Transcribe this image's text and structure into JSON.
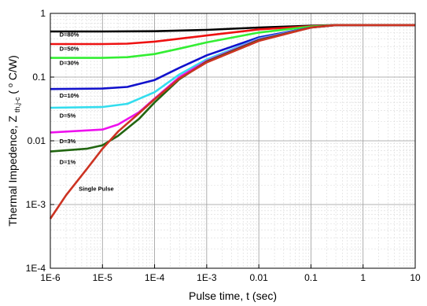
{
  "chart_data": {
    "type": "line",
    "xscale": "log",
    "yscale": "log",
    "xlim": [
      1e-06,
      10
    ],
    "ylim": [
      0.0001,
      1
    ],
    "grid": true,
    "xlabel": "Pulse time, t (sec)",
    "ylabel": {
      "prefix": "Thermal Impedence, Z",
      "subscript": "th,j-c",
      "suffix_open": " (",
      "superscript": "o",
      "suffix_close": "C/W)"
    },
    "x_ticks": [
      {
        "value": 1e-06,
        "label": "1E-6"
      },
      {
        "value": 1e-05,
        "label": "1E-5"
      },
      {
        "value": 0.0001,
        "label": "1E-4"
      },
      {
        "value": 0.001,
        "label": "1E-3"
      },
      {
        "value": 0.01,
        "label": "0.01"
      },
      {
        "value": 0.1,
        "label": "0.1"
      },
      {
        "value": 1,
        "label": "1"
      },
      {
        "value": 10,
        "label": "10"
      }
    ],
    "y_ticks": [
      {
        "value": 0.0001,
        "label": "1E-4"
      },
      {
        "value": 0.001,
        "label": "1E-3"
      },
      {
        "value": 0.01,
        "label": "0.01"
      },
      {
        "value": 0.1,
        "label": "0.1"
      },
      {
        "value": 1,
        "label": "1"
      }
    ],
    "series": [
      {
        "name": "D=80%",
        "color": "#000000",
        "label_at": [
          1.5e-06,
          0.43
        ],
        "points": [
          [
            1e-06,
            0.52
          ],
          [
            1e-05,
            0.52
          ],
          [
            0.0001,
            0.525
          ],
          [
            0.001,
            0.55
          ],
          [
            0.01,
            0.6
          ],
          [
            0.1,
            0.64
          ],
          [
            0.3,
            0.655
          ],
          [
            10,
            0.655
          ]
        ]
      },
      {
        "name": "D=50%",
        "color": "#ee1111",
        "label_at": [
          1.5e-06,
          0.26
        ],
        "points": [
          [
            1e-06,
            0.33
          ],
          [
            1e-05,
            0.33
          ],
          [
            3e-05,
            0.335
          ],
          [
            0.0001,
            0.36
          ],
          [
            0.0003,
            0.4
          ],
          [
            0.001,
            0.45
          ],
          [
            0.01,
            0.56
          ],
          [
            0.1,
            0.63
          ],
          [
            0.3,
            0.655
          ],
          [
            10,
            0.655
          ]
        ]
      },
      {
        "name": "D=30%",
        "color": "#33ee33",
        "label_at": [
          1.5e-06,
          0.155
        ],
        "points": [
          [
            1e-06,
            0.2
          ],
          [
            1e-05,
            0.2
          ],
          [
            3e-05,
            0.205
          ],
          [
            0.0001,
            0.23
          ],
          [
            0.0003,
            0.28
          ],
          [
            0.001,
            0.35
          ],
          [
            0.01,
            0.5
          ],
          [
            0.1,
            0.62
          ],
          [
            0.3,
            0.655
          ],
          [
            10,
            0.655
          ]
        ]
      },
      {
        "name": "D=10%",
        "color": "#1111cc",
        "label_at": [
          1.5e-06,
          0.048
        ],
        "points": [
          [
            1e-06,
            0.065
          ],
          [
            1e-05,
            0.066
          ],
          [
            3e-05,
            0.07
          ],
          [
            0.0001,
            0.09
          ],
          [
            0.0003,
            0.14
          ],
          [
            0.001,
            0.22
          ],
          [
            0.01,
            0.42
          ],
          [
            0.1,
            0.6
          ],
          [
            0.3,
            0.655
          ],
          [
            10,
            0.655
          ]
        ]
      },
      {
        "name": "D=5%",
        "color": "#33ddee",
        "label_at": [
          1.5e-06,
          0.023
        ],
        "points": [
          [
            1e-06,
            0.033
          ],
          [
            1e-05,
            0.034
          ],
          [
            3e-05,
            0.038
          ],
          [
            0.0001,
            0.058
          ],
          [
            0.0003,
            0.11
          ],
          [
            0.001,
            0.19
          ],
          [
            0.01,
            0.4
          ],
          [
            0.1,
            0.6
          ],
          [
            0.3,
            0.655
          ],
          [
            10,
            0.655
          ]
        ]
      },
      {
        "name": "D=3%",
        "color": "#ee11ee",
        "label_at": [
          1.5e-06,
          0.0092
        ],
        "points": [
          [
            1e-06,
            0.0135
          ],
          [
            1e-05,
            0.015
          ],
          [
            2e-05,
            0.018
          ],
          [
            5e-05,
            0.028
          ],
          [
            0.0001,
            0.046
          ],
          [
            0.0003,
            0.1
          ],
          [
            0.001,
            0.18
          ],
          [
            0.01,
            0.39
          ],
          [
            0.1,
            0.6
          ],
          [
            0.3,
            0.655
          ],
          [
            10,
            0.655
          ]
        ]
      },
      {
        "name": "D=1%",
        "color": "#226611",
        "label_at": [
          1.5e-06,
          0.0043
        ],
        "points": [
          [
            1e-06,
            0.0068
          ],
          [
            5e-06,
            0.0075
          ],
          [
            1e-05,
            0.0085
          ],
          [
            2e-05,
            0.012
          ],
          [
            5e-05,
            0.022
          ],
          [
            0.0001,
            0.04
          ],
          [
            0.0003,
            0.093
          ],
          [
            0.001,
            0.175
          ],
          [
            0.01,
            0.38
          ],
          [
            0.1,
            0.6
          ],
          [
            0.3,
            0.655
          ],
          [
            10,
            0.655
          ]
        ]
      },
      {
        "name": "Single Pulse",
        "color": "#cc3322",
        "label_at": [
          3.5e-06,
          0.00165
        ],
        "points": [
          [
            1e-06,
            0.0006
          ],
          [
            2e-06,
            0.0014
          ],
          [
            5e-06,
            0.0036
          ],
          [
            1e-05,
            0.0075
          ],
          [
            2e-05,
            0.014
          ],
          [
            5e-05,
            0.027
          ],
          [
            0.0001,
            0.045
          ],
          [
            0.0003,
            0.095
          ],
          [
            0.001,
            0.17
          ],
          [
            0.01,
            0.37
          ],
          [
            0.1,
            0.6
          ],
          [
            0.3,
            0.655
          ],
          [
            10,
            0.655
          ]
        ]
      }
    ]
  }
}
